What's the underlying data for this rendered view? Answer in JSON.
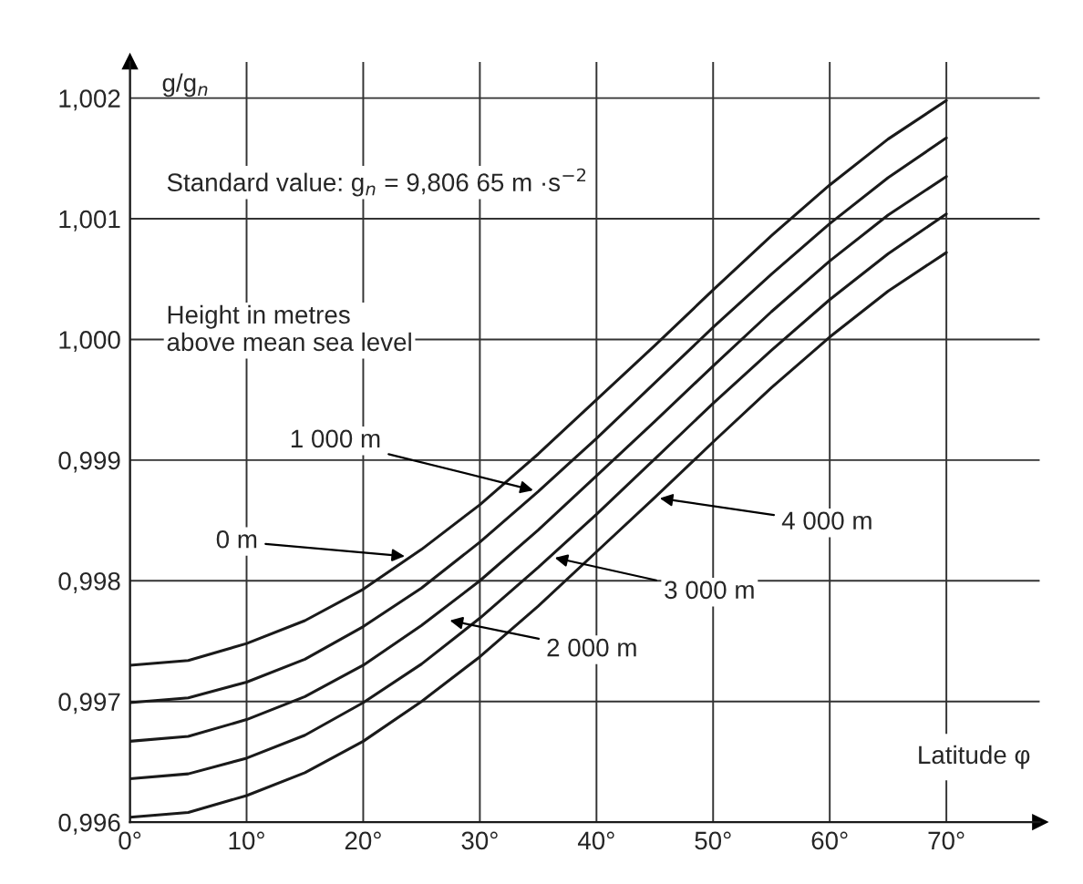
{
  "chart_data": {
    "type": "line",
    "ylabel": "g/g$_{n}$",
    "xlabel": "Latitude φ",
    "x": [
      0,
      5,
      10,
      15,
      20,
      25,
      30,
      35,
      40,
      45,
      50,
      55,
      60,
      65,
      70
    ],
    "series": [
      {
        "color": "#1a1a1a",
        "values": [
          0.9973,
          0.99734,
          0.99748,
          0.99767,
          0.99793,
          0.99826,
          0.99863,
          0.99905,
          0.9995,
          0.99995,
          1.00041,
          1.00086,
          1.00128,
          1.00166,
          1.00198
        ]
      },
      {
        "color": "#1a1a1a",
        "values": [
          0.99699,
          0.99703,
          0.99716,
          0.99735,
          0.99762,
          0.99794,
          0.99832,
          0.99874,
          0.99918,
          0.99964,
          1.0001,
          1.00054,
          1.00096,
          1.00134,
          1.00167
        ]
      },
      {
        "color": "#1a1a1a",
        "values": [
          0.99667,
          0.99671,
          0.99685,
          0.99704,
          0.9973,
          0.99763,
          0.998,
          0.99842,
          0.99887,
          0.99932,
          0.99978,
          1.00023,
          1.00065,
          1.00103,
          1.00135
        ]
      },
      {
        "color": "#1a1a1a",
        "values": [
          0.99636,
          0.9964,
          0.99653,
          0.99672,
          0.99699,
          0.99731,
          0.99769,
          0.99811,
          0.99855,
          0.99901,
          0.99947,
          0.99991,
          1.00033,
          1.00071,
          1.00104
        ]
      },
      {
        "color": "#1a1a1a",
        "values": [
          0.99604,
          0.99608,
          0.99622,
          0.99641,
          0.99667,
          0.997,
          0.99737,
          0.99779,
          0.99824,
          0.99869,
          0.99915,
          0.9996,
          1.00002,
          1.0004,
          1.00072
        ]
      }
    ],
    "xlim": [
      0,
      78
    ],
    "ylim": [
      0.996,
      1.0023
    ],
    "xticks": [
      {
        "value": 0,
        "label": "0°"
      },
      {
        "value": 10,
        "label": "10°"
      },
      {
        "value": 20,
        "label": "20°"
      },
      {
        "value": 30,
        "label": "30°"
      },
      {
        "value": 40,
        "label": "40°"
      },
      {
        "value": 50,
        "label": "50°"
      },
      {
        "value": 60,
        "label": "60°"
      },
      {
        "value": 70,
        "label": "70°"
      }
    ],
    "yticks": [
      {
        "value": 0.996,
        "label": "0,996"
      },
      {
        "value": 0.997,
        "label": "0,997"
      },
      {
        "value": 0.998,
        "label": "0,998"
      },
      {
        "value": 0.999,
        "label": "0,999"
      },
      {
        "value": 1.0,
        "label": "1,000"
      },
      {
        "value": 1.001,
        "label": "1,001"
      },
      {
        "value": 1.002,
        "label": "1,002"
      }
    ],
    "grid": true,
    "legend": false,
    "marker": "none",
    "line_style": "solid",
    "annotations": [
      "Standard value: g$_{n}$ = 9,806 65 m ·s$^{−2}$",
      "Height in metres\nabove mean sea level",
      {
        "text": "0 m",
        "x": 24,
        "y": 0.9982
      },
      {
        "text": "1 000 m",
        "x": 35,
        "y": 0.99874
      },
      {
        "text": "4 000 m",
        "x": 45,
        "y": 0.99869
      },
      {
        "text": "3 000 m",
        "x": 36,
        "y": 0.9982
      },
      {
        "text": "2 000 m",
        "x": 27,
        "y": 0.99768
      }
    ]
  }
}
